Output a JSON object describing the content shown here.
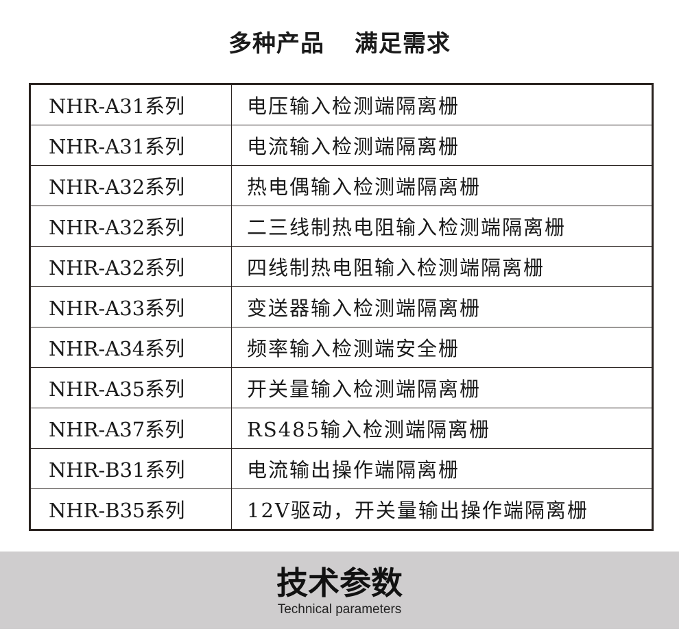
{
  "header": {
    "title_left": "多种产品",
    "title_right": "满足需求"
  },
  "table": {
    "rows": [
      {
        "model": "NHR-A31系列",
        "desc": "电压输入检测端隔离栅"
      },
      {
        "model": "NHR-A31系列",
        "desc": "电流输入检测端隔离栅"
      },
      {
        "model": "NHR-A32系列",
        "desc": "热电偶输入检测端隔离栅"
      },
      {
        "model": "NHR-A32系列",
        "desc": "二三线制热电阻输入检测端隔离栅"
      },
      {
        "model": "NHR-A32系列",
        "desc": "四线制热电阻输入检测端隔离栅"
      },
      {
        "model": "NHR-A33系列",
        "desc": "变送器输入检测端隔离栅"
      },
      {
        "model": "NHR-A34系列",
        "desc": "频率输入检测端安全栅"
      },
      {
        "model": "NHR-A35系列",
        "desc": "开关量输入检测端隔离栅"
      },
      {
        "model": "NHR-A37系列",
        "desc": "RS485输入检测端隔离栅"
      },
      {
        "model": "NHR-B31系列",
        "desc": "电流输出操作端隔离栅"
      },
      {
        "model": "NHR-B35系列",
        "desc": "12V驱动，开关量输出操作端隔离栅"
      }
    ]
  },
  "banner": {
    "title": "技术参数",
    "subtitle": "Technical parameters",
    "background": "#cfcdce"
  }
}
